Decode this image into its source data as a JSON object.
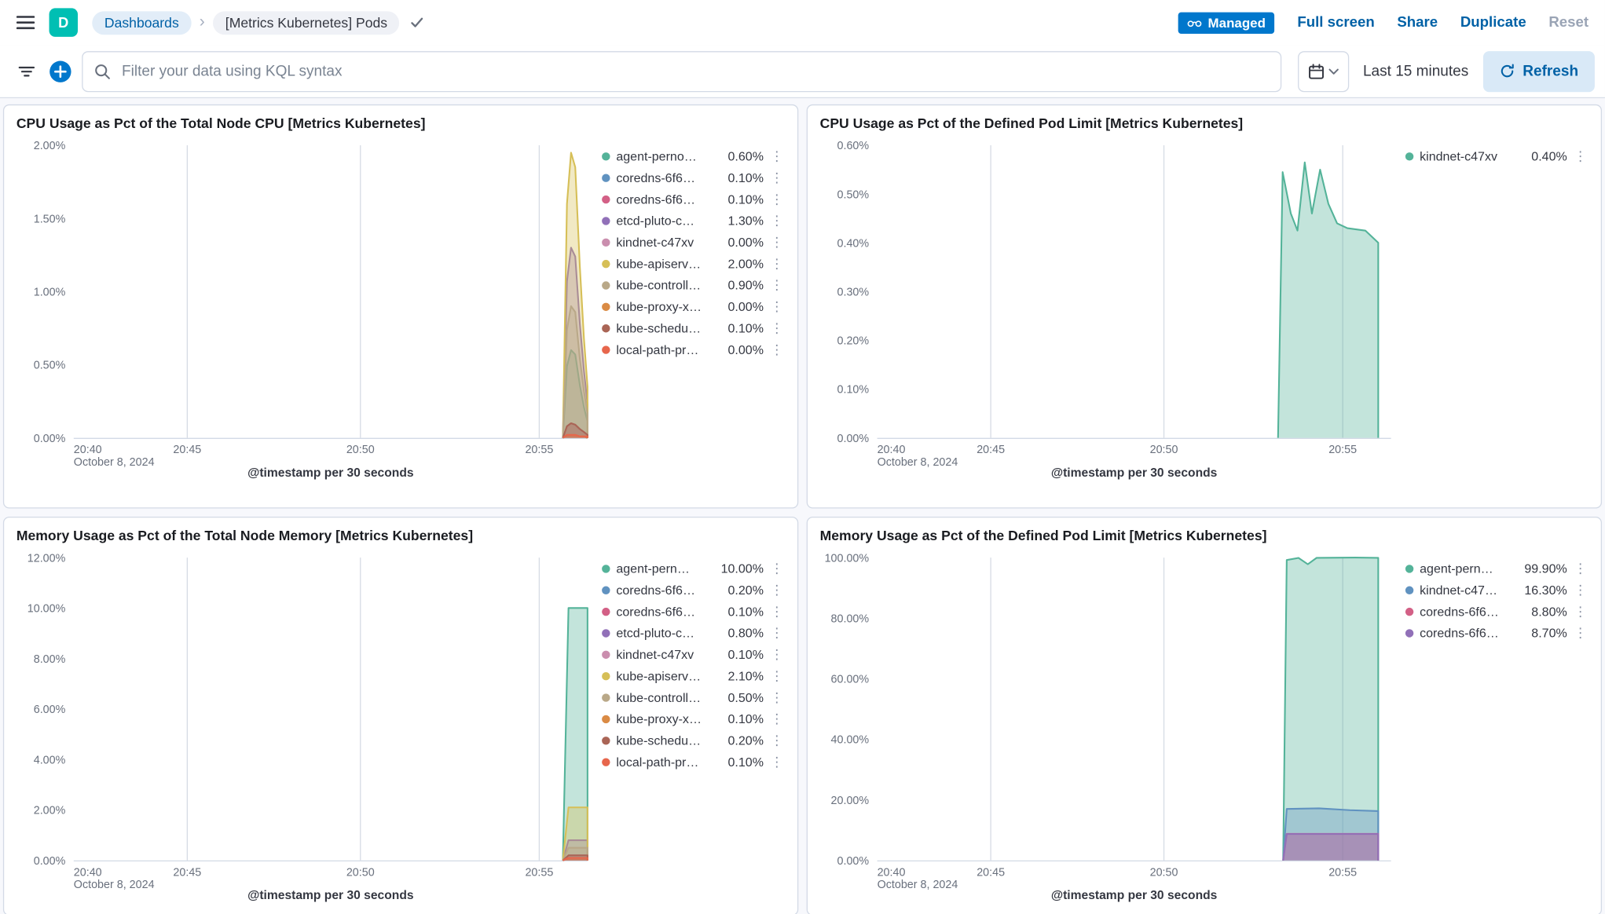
{
  "header": {
    "logo_letter": "D",
    "breadcrumb_dashboards": "Dashboards",
    "breadcrumb_current": "[Metrics Kubernetes] Pods",
    "managed_badge": "Managed",
    "action_fullscreen": "Full screen",
    "action_share": "Share",
    "action_duplicate": "Duplicate",
    "action_reset": "Reset"
  },
  "querybar": {
    "placeholder": "Filter your data using KQL syntax",
    "time_range": "Last 15 minutes",
    "refresh_label": "Refresh"
  },
  "colors": {
    "primary": "#0077CC",
    "link_blue": "#0061A6",
    "managed_badge_bg": "#0077CC",
    "logo_green": "#00BFB3",
    "panel_border": "#D3DAE6"
  },
  "chart_data": [
    {
      "id": "cpu-node",
      "type": "area",
      "title": "CPU Usage as Pct of the Total Node CPU [Metrics Kubernetes]",
      "x_axis_title": "@timestamp per 30 seconds",
      "ylim": [
        0,
        2
      ],
      "yticks": [
        {
          "v": 0,
          "label": "0.00%"
        },
        {
          "v": 0.5,
          "label": "0.50%"
        },
        {
          "v": 1,
          "label": "1.00%"
        },
        {
          "v": 1.5,
          "label": "1.50%"
        },
        {
          "v": 2,
          "label": "2.00%"
        }
      ],
      "xticks": [
        {
          "label": "20:40",
          "f": 0.004,
          "grid": false,
          "sub": "October 8, 2024"
        },
        {
          "label": "20:45",
          "f": 0.221,
          "grid": true
        },
        {
          "label": "20:50",
          "f": 0.558,
          "grid": true
        },
        {
          "label": "20:55",
          "f": 0.906,
          "grid": true
        }
      ],
      "series": [
        {
          "label": "agent-perno…",
          "value": "0.60%",
          "color": "#54B399",
          "points": [
            [
              0.952,
              0
            ],
            [
              0.96,
              0.49
            ],
            [
              0.968,
              0.6
            ],
            [
              0.976,
              0.57
            ],
            [
              0.985,
              0.36
            ],
            [
              0.993,
              0.21
            ],
            [
              1,
              0.11
            ]
          ]
        },
        {
          "label": "coredns-6f6…",
          "value": "0.10%",
          "color": "#6092C0",
          "points": [
            [
              0.952,
              0
            ],
            [
              0.96,
              0.08
            ],
            [
              0.968,
              0.1
            ],
            [
              0.976,
              0.09
            ],
            [
              0.985,
              0.06
            ],
            [
              0.993,
              0.04
            ],
            [
              1,
              0.02
            ]
          ]
        },
        {
          "label": "coredns-6f6…",
          "value": "0.10%",
          "color": "#D36086",
          "points": [
            [
              0.952,
              0
            ],
            [
              0.96,
              0.08
            ],
            [
              0.968,
              0.1
            ],
            [
              0.976,
              0.09
            ],
            [
              0.985,
              0.06
            ],
            [
              0.993,
              0.04
            ],
            [
              1,
              0.02
            ]
          ]
        },
        {
          "label": "etcd-pluto-c…",
          "value": "1.30%",
          "color": "#9170B8",
          "points": [
            [
              0.952,
              0
            ],
            [
              0.96,
              1.07
            ],
            [
              0.968,
              1.3
            ],
            [
              0.976,
              1.24
            ],
            [
              0.985,
              0.78
            ],
            [
              0.993,
              0.46
            ],
            [
              1,
              0.23
            ]
          ]
        },
        {
          "label": "kindnet-c47xv",
          "value": "0.00%",
          "color": "#CA8EAE",
          "points": [
            [
              0.952,
              0
            ],
            [
              0.96,
              0.02
            ],
            [
              0.968,
              0.02
            ],
            [
              0.976,
              0.02
            ],
            [
              0.985,
              0.01
            ],
            [
              0.993,
              0.01
            ],
            [
              1,
              0
            ]
          ]
        },
        {
          "label": "kube-apiserv…",
          "value": "2.00%",
          "color": "#D6BF57",
          "points": [
            [
              0.952,
              0
            ],
            [
              0.96,
              1.6
            ],
            [
              0.968,
              1.95
            ],
            [
              0.976,
              1.85
            ],
            [
              0.985,
              1.17
            ],
            [
              0.993,
              0.68
            ],
            [
              1,
              0.35
            ]
          ]
        },
        {
          "label": "kube-controll…",
          "value": "0.90%",
          "color": "#B9A888",
          "points": [
            [
              0.952,
              0
            ],
            [
              0.96,
              0.74
            ],
            [
              0.968,
              0.9
            ],
            [
              0.976,
              0.86
            ],
            [
              0.985,
              0.54
            ],
            [
              0.993,
              0.32
            ],
            [
              1,
              0.16
            ]
          ]
        },
        {
          "label": "kube-proxy-x…",
          "value": "0.00%",
          "color": "#DA8B45",
          "points": [
            [
              0.952,
              0
            ],
            [
              0.96,
              0.02
            ],
            [
              0.968,
              0.02
            ],
            [
              0.976,
              0.02
            ],
            [
              0.985,
              0.01
            ],
            [
              0.993,
              0.01
            ],
            [
              1,
              0
            ]
          ]
        },
        {
          "label": "kube-schedu…",
          "value": "0.10%",
          "color": "#AA6556",
          "points": [
            [
              0.952,
              0
            ],
            [
              0.96,
              0.08
            ],
            [
              0.968,
              0.1
            ],
            [
              0.976,
              0.09
            ],
            [
              0.985,
              0.06
            ],
            [
              0.993,
              0.04
            ],
            [
              1,
              0.02
            ]
          ]
        },
        {
          "label": "local-path-pr…",
          "value": "0.00%",
          "color": "#E7664C",
          "points": [
            [
              0.952,
              0
            ],
            [
              0.96,
              0.02
            ],
            [
              0.968,
              0.02
            ],
            [
              0.976,
              0.02
            ],
            [
              0.985,
              0.01
            ],
            [
              0.993,
              0.01
            ],
            [
              1,
              0.01
            ]
          ]
        }
      ]
    },
    {
      "id": "cpu-limit",
      "type": "area",
      "title": "CPU Usage as Pct of the Defined Pod Limit [Metrics Kubernetes]",
      "x_axis_title": "@timestamp per 30 seconds",
      "ylim": [
        0,
        0.6
      ],
      "yticks": [
        {
          "v": 0,
          "label": "0.00%"
        },
        {
          "v": 0.1,
          "label": "0.10%"
        },
        {
          "v": 0.2,
          "label": "0.20%"
        },
        {
          "v": 0.3,
          "label": "0.30%"
        },
        {
          "v": 0.4,
          "label": "0.40%"
        },
        {
          "v": 0.5,
          "label": "0.50%"
        },
        {
          "v": 0.6,
          "label": "0.60%"
        }
      ],
      "xticks": [
        {
          "label": "20:40",
          "f": 0.004,
          "grid": false,
          "sub": "October 8, 2024"
        },
        {
          "label": "20:45",
          "f": 0.221,
          "grid": true
        },
        {
          "label": "20:50",
          "f": 0.558,
          "grid": true
        },
        {
          "label": "20:55",
          "f": 0.906,
          "grid": true
        }
      ],
      "series": [
        {
          "label": "kindnet-c47xv",
          "value": "0.40%",
          "color": "#54B399",
          "points": [
            [
              0.78,
              0
            ],
            [
              0.789,
              0.545
            ],
            [
              0.805,
              0.46
            ],
            [
              0.818,
              0.425
            ],
            [
              0.832,
              0.565
            ],
            [
              0.846,
              0.46
            ],
            [
              0.862,
              0.55
            ],
            [
              0.878,
              0.48
            ],
            [
              0.895,
              0.44
            ],
            [
              0.915,
              0.43
            ],
            [
              0.95,
              0.425
            ],
            [
              0.975,
              0.4
            ]
          ]
        }
      ]
    },
    {
      "id": "mem-node",
      "type": "area",
      "title": "Memory Usage as Pct of the Total Node Memory [Metrics Kubernetes]",
      "x_axis_title": "@timestamp per 30 seconds",
      "ylim": [
        0,
        12
      ],
      "yticks": [
        {
          "v": 0,
          "label": "0.00%"
        },
        {
          "v": 2,
          "label": "2.00%"
        },
        {
          "v": 4,
          "label": "4.00%"
        },
        {
          "v": 6,
          "label": "6.00%"
        },
        {
          "v": 8,
          "label": "8.00%"
        },
        {
          "v": 10,
          "label": "10.00%"
        },
        {
          "v": 12,
          "label": "12.00%"
        }
      ],
      "xticks": [
        {
          "label": "20:40",
          "f": 0.004,
          "grid": false,
          "sub": "October 8, 2024"
        },
        {
          "label": "20:45",
          "f": 0.221,
          "grid": true
        },
        {
          "label": "20:50",
          "f": 0.558,
          "grid": true
        },
        {
          "label": "20:55",
          "f": 0.906,
          "grid": true
        }
      ],
      "series": [
        {
          "label": "agent-pern…",
          "value": "10.00%",
          "color": "#54B399",
          "points": [
            [
              0.952,
              0
            ],
            [
              0.963,
              10
            ],
            [
              1,
              10
            ]
          ]
        },
        {
          "label": "coredns-6f6…",
          "value": "0.20%",
          "color": "#6092C0",
          "points": [
            [
              0.952,
              0
            ],
            [
              0.963,
              0.2
            ],
            [
              1,
              0.2
            ]
          ]
        },
        {
          "label": "coredns-6f6…",
          "value": "0.10%",
          "color": "#D36086",
          "points": [
            [
              0.952,
              0
            ],
            [
              0.963,
              0.1
            ],
            [
              1,
              0.1
            ]
          ]
        },
        {
          "label": "etcd-pluto-c…",
          "value": "0.80%",
          "color": "#9170B8",
          "points": [
            [
              0.952,
              0
            ],
            [
              0.963,
              0.8
            ],
            [
              1,
              0.8
            ]
          ]
        },
        {
          "label": "kindnet-c47xv",
          "value": "0.10%",
          "color": "#CA8EAE",
          "points": [
            [
              0.952,
              0
            ],
            [
              0.963,
              0.1
            ],
            [
              1,
              0.1
            ]
          ]
        },
        {
          "label": "kube-apiserv…",
          "value": "2.10%",
          "color": "#D6BF57",
          "points": [
            [
              0.952,
              0
            ],
            [
              0.963,
              2.1
            ],
            [
              1,
              2.1
            ]
          ]
        },
        {
          "label": "kube-controll…",
          "value": "0.50%",
          "color": "#B9A888",
          "points": [
            [
              0.952,
              0
            ],
            [
              0.963,
              0.5
            ],
            [
              1,
              0.5
            ]
          ]
        },
        {
          "label": "kube-proxy-x…",
          "value": "0.10%",
          "color": "#DA8B45",
          "points": [
            [
              0.952,
              0
            ],
            [
              0.963,
              0.1
            ],
            [
              1,
              0.1
            ]
          ]
        },
        {
          "label": "kube-schedu…",
          "value": "0.20%",
          "color": "#AA6556",
          "points": [
            [
              0.952,
              0
            ],
            [
              0.963,
              0.2
            ],
            [
              1,
              0.2
            ]
          ]
        },
        {
          "label": "local-path-pr…",
          "value": "0.10%",
          "color": "#E7664C",
          "points": [
            [
              0.952,
              0
            ],
            [
              0.963,
              0.1
            ],
            [
              1,
              0.1
            ]
          ]
        }
      ]
    },
    {
      "id": "mem-limit",
      "type": "area",
      "title": "Memory Usage as Pct of the Defined Pod Limit [Metrics Kubernetes]",
      "x_axis_title": "@timestamp per 30 seconds",
      "ylim": [
        0,
        100
      ],
      "yticks": [
        {
          "v": 0,
          "label": "0.00%"
        },
        {
          "v": 20,
          "label": "20.00%"
        },
        {
          "v": 40,
          "label": "40.00%"
        },
        {
          "v": 60,
          "label": "60.00%"
        },
        {
          "v": 80,
          "label": "80.00%"
        },
        {
          "v": 100,
          "label": "100.00%"
        }
      ],
      "xticks": [
        {
          "label": "20:40",
          "f": 0.004,
          "grid": false,
          "sub": "October 8, 2024"
        },
        {
          "label": "20:45",
          "f": 0.221,
          "grid": true
        },
        {
          "label": "20:50",
          "f": 0.558,
          "grid": true
        },
        {
          "label": "20:55",
          "f": 0.906,
          "grid": true
        }
      ],
      "series": [
        {
          "label": "agent-pern…",
          "value": "99.90%",
          "color": "#54B399",
          "points": [
            [
              0.79,
              0
            ],
            [
              0.797,
              99.2
            ],
            [
              0.82,
              99.9
            ],
            [
              0.838,
              97.8
            ],
            [
              0.855,
              99.9
            ],
            [
              0.93,
              100
            ],
            [
              0.975,
              99.9
            ]
          ]
        },
        {
          "label": "kindnet-c47…",
          "value": "16.30%",
          "color": "#6092C0",
          "points": [
            [
              0.79,
              0
            ],
            [
              0.797,
              17
            ],
            [
              0.86,
              17.2
            ],
            [
              0.92,
              16.6
            ],
            [
              0.975,
              16.3
            ]
          ]
        },
        {
          "label": "coredns-6f6…",
          "value": "8.80%",
          "color": "#D36086",
          "points": [
            [
              0.79,
              0
            ],
            [
              0.797,
              8.8
            ],
            [
              0.975,
              8.8
            ]
          ]
        },
        {
          "label": "coredns-6f6…",
          "value": "8.70%",
          "color": "#9170B8",
          "points": [
            [
              0.79,
              0
            ],
            [
              0.797,
              8.7
            ],
            [
              0.975,
              8.7
            ]
          ]
        }
      ]
    }
  ]
}
